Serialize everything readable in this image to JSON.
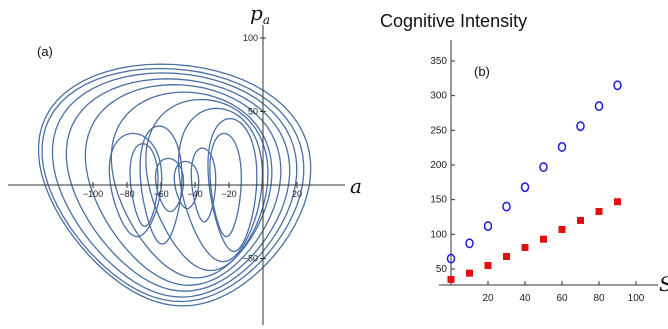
{
  "chart_data": [
    {
      "panel_label": "(a)",
      "type": "line",
      "xlabel": "a",
      "ylabel_base": "p",
      "ylabel_sub": "a",
      "xlim": [
        -120,
        40
      ],
      "ylim": [
        -100,
        110
      ],
      "x_ticks": [
        -100,
        -80,
        -60,
        -40,
        -20,
        20
      ],
      "y_ticks": [
        100,
        50,
        -50
      ],
      "series_color": "#4a6fa5",
      "curves": {
        "note": "phase-space loops (a, p_a); each loop: center x, x-radius, y-radius, tilt",
        "loops": [
          {
            "cx": -70,
            "rx": 8,
            "ry": 28
          },
          {
            "cx": -55,
            "rx": 8,
            "ry": 18
          },
          {
            "cx": -45,
            "rx": 7,
            "ry": 16
          },
          {
            "cx": -35,
            "rx": 7,
            "ry": 25
          },
          {
            "cx": -22,
            "rx": 9,
            "ry": 35
          },
          {
            "cx": -18,
            "rx": 14,
            "ry": 45
          },
          {
            "cx": -25,
            "rx": 24,
            "ry": 52
          },
          {
            "cx": -33,
            "rx": 35,
            "ry": 58
          },
          {
            "cx": -42,
            "rx": 46,
            "ry": 63
          },
          {
            "cx": -47,
            "rx": 56,
            "ry": 68
          },
          {
            "cx": -50,
            "rx": 64,
            "ry": 72
          },
          {
            "cx": -52,
            "rx": 70,
            "ry": 76
          },
          {
            "cx": -53,
            "rx": 75,
            "ry": 79
          },
          {
            "cx": -52,
            "rx": 78,
            "ry": 82
          },
          {
            "cx": -60,
            "rx": 12,
            "ry": 40
          },
          {
            "cx": -75,
            "rx": 15,
            "ry": 35
          }
        ]
      }
    },
    {
      "panel_label": "(b)",
      "type": "scatter",
      "title": "Cognitive Intensity",
      "xlabel": "S",
      "x_ticks": [
        20,
        40,
        60,
        80,
        100
      ],
      "y_ticks": [
        50,
        100,
        150,
        200,
        250,
        300,
        350
      ],
      "xlim": [
        0,
        100
      ],
      "ylim": [
        15,
        360
      ],
      "series": [
        {
          "marker": "open-circle",
          "color": "#1a1ad6",
          "x": [
            0,
            10,
            20,
            30,
            40,
            50,
            60,
            70,
            80,
            90
          ],
          "y": [
            65,
            87,
            112,
            140,
            168,
            197,
            226,
            256,
            285,
            315
          ]
        },
        {
          "marker": "filled-square",
          "color": "#e01010",
          "x": [
            0,
            10,
            20,
            30,
            40,
            50,
            60,
            70,
            80,
            90
          ],
          "y": [
            35,
            44,
            55,
            68,
            81,
            93,
            107,
            120,
            133,
            147
          ]
        }
      ]
    }
  ]
}
